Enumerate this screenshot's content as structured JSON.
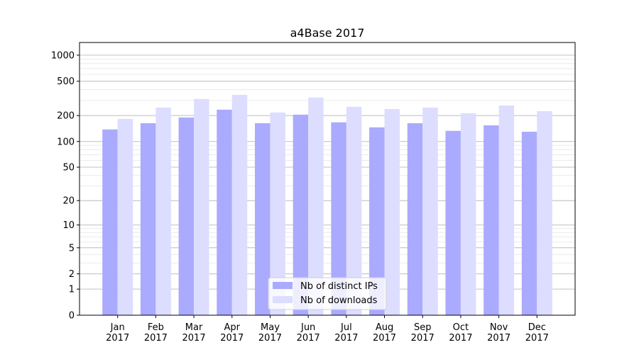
{
  "chart_data": {
    "type": "bar",
    "title": "a4Base 2017",
    "xlabel": "",
    "ylabel": "",
    "yscale": "log(1+y)",
    "ylim": [
      0,
      1400
    ],
    "yticks": [
      0,
      1,
      2,
      5,
      10,
      20,
      50,
      100,
      200,
      500,
      1000
    ],
    "ytick_labels": [
      "0",
      "1",
      "2",
      "5",
      "10",
      "20",
      "50",
      "100",
      "200",
      "500",
      "1000"
    ],
    "grid": true,
    "legend_position": "lower center",
    "categories": [
      "Jan\n2017",
      "Feb\n2017",
      "Mar\n2017",
      "Apr\n2017",
      "May\n2017",
      "Jun\n2017",
      "Jul\n2017",
      "Aug\n2017",
      "Sep\n2017",
      "Oct\n2017",
      "Nov\n2017",
      "Dec\n2017"
    ],
    "series": [
      {
        "name": "Nb of distinct IPs",
        "color": "#aaaaff",
        "values": [
          138,
          163,
          190,
          234,
          163,
          205,
          167,
          146,
          163,
          133,
          154,
          130
        ]
      },
      {
        "name": "Nb of downloads",
        "color": "#ddddff",
        "values": [
          183,
          248,
          311,
          348,
          217,
          323,
          253,
          238,
          248,
          213,
          262,
          225
        ]
      }
    ]
  }
}
